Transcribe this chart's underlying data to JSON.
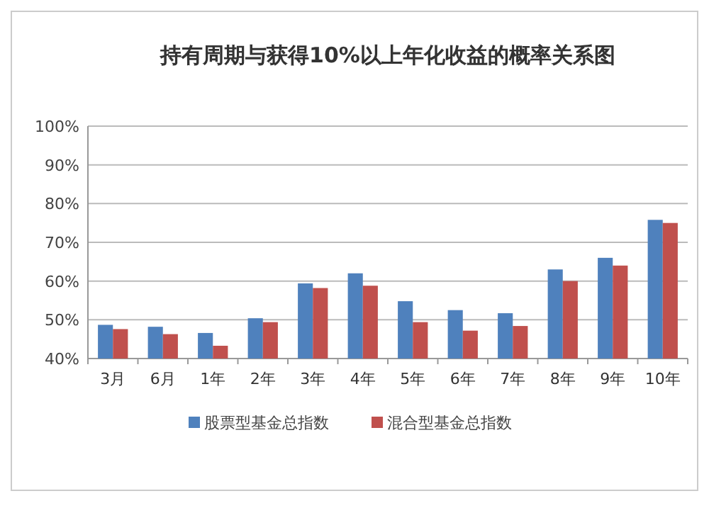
{
  "chart_data": {
    "type": "bar",
    "title": "持有周期与获得10%以上年化收益的概率关系图",
    "categories": [
      "3月",
      "6月",
      "1年",
      "2年",
      "3年",
      "4年",
      "5年",
      "6年",
      "7年",
      "8年",
      "9年",
      "10年"
    ],
    "series": [
      {
        "name": "股票型基金总指数",
        "color": "#4f81bd",
        "values": [
          48.7,
          48.2,
          46.6,
          50.4,
          59.4,
          62,
          54.8,
          52.5,
          51.7,
          63,
          66,
          75.8
        ]
      },
      {
        "name": "混合型基金总指数",
        "color": "#c0504d",
        "values": [
          47.6,
          46.3,
          43.3,
          49.4,
          58.2,
          58.8,
          49.4,
          47.2,
          48.4,
          60,
          64,
          75
        ]
      }
    ],
    "ylim": [
      40,
      100
    ],
    "yticks": [
      {
        "value": 40,
        "label": "40%"
      },
      {
        "value": 50,
        "label": "50%"
      },
      {
        "value": 60,
        "label": "60%"
      },
      {
        "value": 70,
        "label": "70%"
      },
      {
        "value": 80,
        "label": "80%"
      },
      {
        "value": 90,
        "label": "90%"
      },
      {
        "value": 100,
        "label": "100%"
      }
    ],
    "grid": "y",
    "legend": "bottom"
  }
}
